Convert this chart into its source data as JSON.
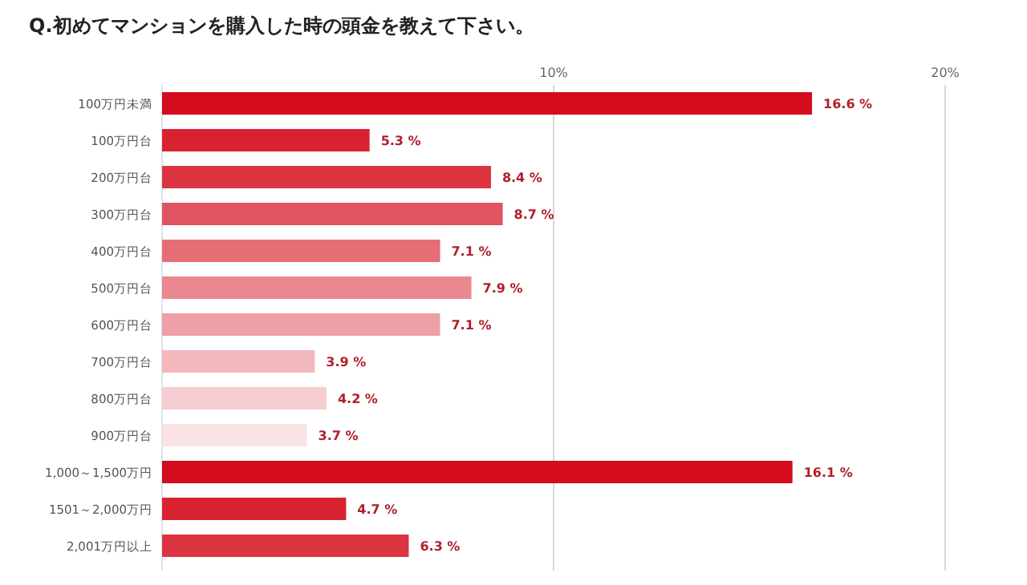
{
  "chart_data": {
    "type": "bar",
    "orientation": "horizontal",
    "title": "Q.初めてマンションを購入した時の頭金を教えて下さい。",
    "categories": [
      "100万円未満",
      "100万円台",
      "200万円台",
      "300万円台",
      "400万円台",
      "500万円台",
      "600万円台",
      "700万円台",
      "800万円台",
      "900万円台",
      "1,000～1,500万円",
      "1501～2,000万円",
      "2,001万円以上"
    ],
    "values": [
      16.6,
      5.3,
      8.4,
      8.7,
      7.1,
      7.9,
      7.1,
      3.9,
      4.2,
      3.7,
      16.1,
      4.7,
      6.3
    ],
    "value_labels": [
      "16.6 %",
      "5.3 %",
      "8.4 %",
      "8.7 %",
      "7.1 %",
      "7.9 %",
      "7.1 %",
      "3.9 %",
      "4.2 %",
      "3.7 %",
      "16.1 %",
      "4.7 %",
      "6.3 %"
    ],
    "colors": [
      "#d50b1e",
      "#d92230",
      "#dc3440",
      "#e05360",
      "#e56d76",
      "#e98890",
      "#eda0a6",
      "#f2b8bc",
      "#f6cdd0",
      "#f9e3e5",
      "#d50b1e",
      "#d92230",
      "#dc3440"
    ],
    "xlim": [
      0,
      20
    ],
    "xticks": [
      {
        "value": 10,
        "label": "10%"
      },
      {
        "value": 20,
        "label": "20%"
      }
    ],
    "grid": "x"
  }
}
